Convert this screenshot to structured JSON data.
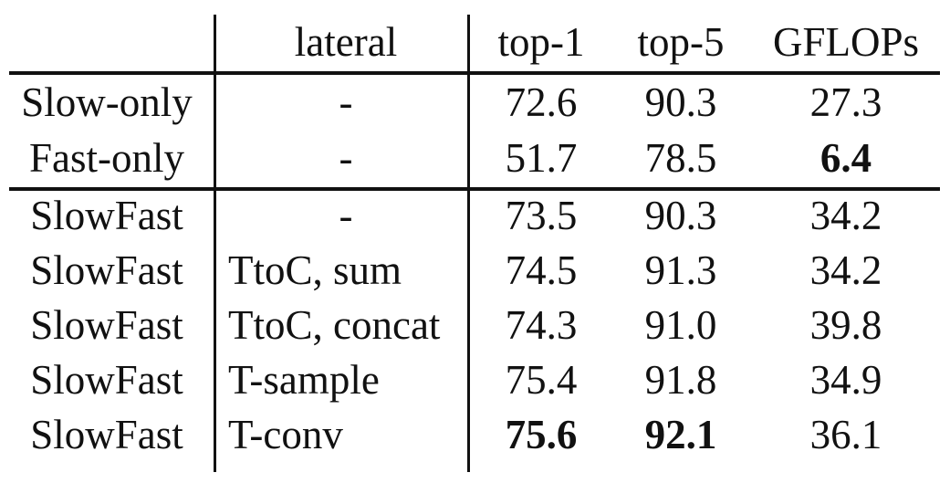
{
  "headers": {
    "method": "",
    "lateral": "lateral",
    "top1": "top-1",
    "top5": "top-5",
    "gflops": "GFLOPs"
  },
  "rows": [
    {
      "method": "Slow-only",
      "lateral": "-",
      "top1": "72.6",
      "top5": "90.3",
      "gflops": "27.3"
    },
    {
      "method": "Fast-only",
      "lateral": "-",
      "top1": "51.7",
      "top5": "78.5",
      "gflops": "6.4"
    },
    {
      "method": "SlowFast",
      "lateral": "-",
      "top1": "73.5",
      "top5": "90.3",
      "gflops": "34.2"
    },
    {
      "method": "SlowFast",
      "lateral": "TtoC, sum",
      "top1": "74.5",
      "top5": "91.3",
      "gflops": "34.2"
    },
    {
      "method": "SlowFast",
      "lateral": "TtoC, concat",
      "top1": "74.3",
      "top5": "91.0",
      "gflops": "39.8"
    },
    {
      "method": "SlowFast",
      "lateral": "T-sample",
      "top1": "75.4",
      "top5": "91.8",
      "gflops": "34.9"
    },
    {
      "method": "SlowFast",
      "lateral": "T-conv",
      "top1": "75.6",
      "top5": "92.1",
      "gflops": "36.1"
    }
  ],
  "bold_cells": [
    "rows.1.gflops",
    "rows.6.top1",
    "rows.6.top5"
  ]
}
